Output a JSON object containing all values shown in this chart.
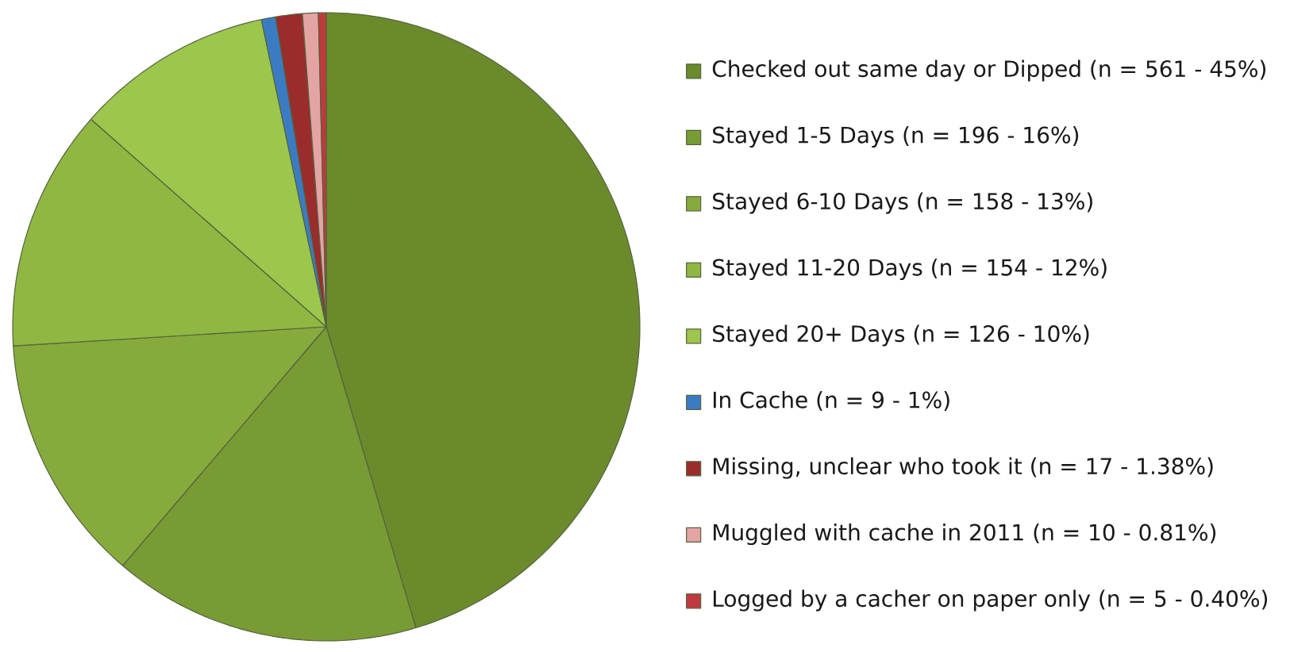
{
  "chart_data": {
    "type": "pie",
    "categories": [
      "Checked out same day or Dipped (n = 561 - 45%)",
      "Stayed 1-5 Days (n = 196 - 16%)",
      "Stayed 6-10 Days (n = 158 - 13%)",
      "Stayed 11-20 Days (n = 154 - 12%)",
      "Stayed 20+ Days (n = 126 - 10%)",
      "In Cache (n = 9 - 1%)",
      "Missing, unclear who took it (n = 17 - 1.38%)",
      "Muggled with cache in 2011 (n = 10 - 0.81%)",
      "Logged by a cacher on paper only (n = 5 - 0.40%)"
    ],
    "values": [
      561,
      196,
      158,
      154,
      126,
      9,
      17,
      10,
      5
    ],
    "colors": [
      "#6b8a2c",
      "#789b34",
      "#86ab3c",
      "#8fb742",
      "#9cc64c",
      "#3a7cc4",
      "#9a2c2c",
      "#e4a4a4",
      "#c0393c"
    ],
    "legend": "right"
  }
}
